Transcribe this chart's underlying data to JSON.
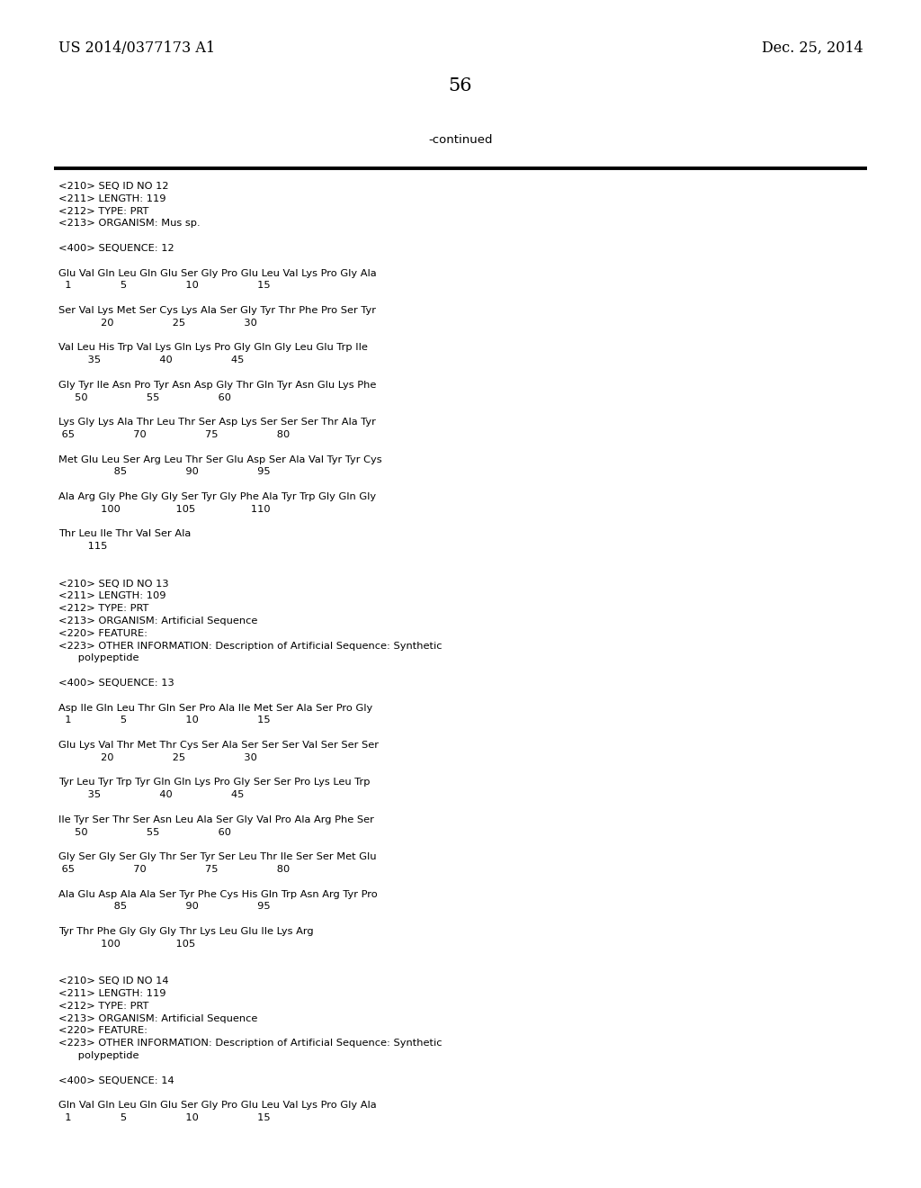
{
  "header_left": "US 2014/0377173 A1",
  "header_right": "Dec. 25, 2014",
  "page_number": "56",
  "continued_text": "-continued",
  "background_color": "#ffffff",
  "text_color": "#000000",
  "font_size_header": 11.5,
  "font_size_body": 8.2,
  "font_size_page": 15,
  "font_size_continued": 9.5,
  "lines": [
    "<210> SEQ ID NO 12",
    "<211> LENGTH: 119",
    "<212> TYPE: PRT",
    "<213> ORGANISM: Mus sp.",
    "",
    "<400> SEQUENCE: 12",
    "",
    "Glu Val Gln Leu Gln Glu Ser Gly Pro Glu Leu Val Lys Pro Gly Ala",
    "  1               5                  10                  15",
    "",
    "Ser Val Lys Met Ser Cys Lys Ala Ser Gly Tyr Thr Phe Pro Ser Tyr",
    "             20                  25                  30",
    "",
    "Val Leu His Trp Val Lys Gln Lys Pro Gly Gln Gly Leu Glu Trp Ile",
    "         35                  40                  45",
    "",
    "Gly Tyr Ile Asn Pro Tyr Asn Asp Gly Thr Gln Tyr Asn Glu Lys Phe",
    "     50                  55                  60",
    "",
    "Lys Gly Lys Ala Thr Leu Thr Ser Asp Lys Ser Ser Ser Thr Ala Tyr",
    " 65                  70                  75                  80",
    "",
    "Met Glu Leu Ser Arg Leu Thr Ser Glu Asp Ser Ala Val Tyr Tyr Cys",
    "                 85                  90                  95",
    "",
    "Ala Arg Gly Phe Gly Gly Ser Tyr Gly Phe Ala Tyr Trp Gly Gln Gly",
    "             100                 105                 110",
    "",
    "Thr Leu Ile Thr Val Ser Ala",
    "         115",
    "",
    "",
    "<210> SEQ ID NO 13",
    "<211> LENGTH: 109",
    "<212> TYPE: PRT",
    "<213> ORGANISM: Artificial Sequence",
    "<220> FEATURE:",
    "<223> OTHER INFORMATION: Description of Artificial Sequence: Synthetic",
    "      polypeptide",
    "",
    "<400> SEQUENCE: 13",
    "",
    "Asp Ile Gln Leu Thr Gln Ser Pro Ala Ile Met Ser Ala Ser Pro Gly",
    "  1               5                  10                  15",
    "",
    "Glu Lys Val Thr Met Thr Cys Ser Ala Ser Ser Ser Val Ser Ser Ser",
    "             20                  25                  30",
    "",
    "Tyr Leu Tyr Trp Tyr Gln Gln Lys Pro Gly Ser Ser Pro Lys Leu Trp",
    "         35                  40                  45",
    "",
    "Ile Tyr Ser Thr Ser Asn Leu Ala Ser Gly Val Pro Ala Arg Phe Ser",
    "     50                  55                  60",
    "",
    "Gly Ser Gly Ser Gly Thr Ser Tyr Ser Leu Thr Ile Ser Ser Met Glu",
    " 65                  70                  75                  80",
    "",
    "Ala Glu Asp Ala Ala Ser Tyr Phe Cys His Gln Trp Asn Arg Tyr Pro",
    "                 85                  90                  95",
    "",
    "Tyr Thr Phe Gly Gly Gly Thr Lys Leu Glu Ile Lys Arg",
    "             100                 105",
    "",
    "",
    "<210> SEQ ID NO 14",
    "<211> LENGTH: 119",
    "<212> TYPE: PRT",
    "<213> ORGANISM: Artificial Sequence",
    "<220> FEATURE:",
    "<223> OTHER INFORMATION: Description of Artificial Sequence: Synthetic",
    "      polypeptide",
    "",
    "<400> SEQUENCE: 14",
    "",
    "Gln Val Gln Leu Gln Glu Ser Gly Pro Glu Leu Val Lys Pro Gly Ala",
    "  1               5                  10                  15"
  ]
}
